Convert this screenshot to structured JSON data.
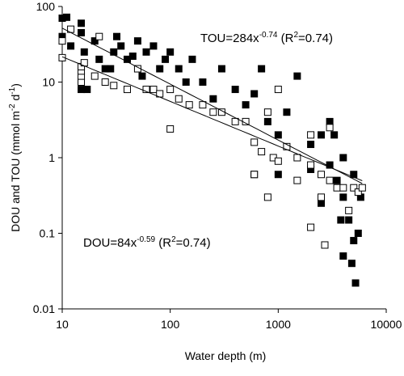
{
  "chart_data": {
    "type": "scatter",
    "xlabel": "Water depth (m)",
    "ylabel_parts": [
      {
        "text": "DOU and TOU (mmol m"
      },
      {
        "text": "-2",
        "sup": true
      },
      {
        "text": " d"
      },
      {
        "text": "-1",
        "sup": true
      },
      {
        "text": ")"
      }
    ],
    "xscale": "log",
    "yscale": "log",
    "xlim": [
      10,
      10000
    ],
    "ylim": [
      0.01,
      100
    ],
    "xticks": [
      10,
      100,
      1000,
      10000
    ],
    "yticks": [
      0.01,
      0.1,
      1,
      10,
      100
    ],
    "annotations": [
      {
        "parts": [
          {
            "text": "TOU=284x"
          },
          {
            "text": "-0.74",
            "sup": true
          },
          {
            "text": " (R"
          },
          {
            "text": "2",
            "sup": true
          },
          {
            "text": "=0.74)"
          }
        ]
      },
      {
        "parts": [
          {
            "text": "DOU=84x"
          },
          {
            "text": "-0.59",
            "sup": true
          },
          {
            "text": " (R"
          },
          {
            "text": "2",
            "sup": true
          },
          {
            "text": "=0.74)"
          }
        ]
      }
    ],
    "fits": [
      {
        "coef": 284,
        "exponent": -0.74,
        "xrange": [
          10,
          6000
        ]
      },
      {
        "coef": 84,
        "exponent": -0.59,
        "xrange": [
          10,
          6000
        ]
      }
    ],
    "series": [
      {
        "color": "#000000",
        "fill": "#000000",
        "x": [
          10,
          11,
          10,
          12,
          15,
          15,
          16,
          17,
          15,
          20,
          22,
          25,
          28,
          30,
          32,
          35,
          40,
          45,
          50,
          55,
          60,
          70,
          80,
          90,
          100,
          120,
          140,
          160,
          200,
          250,
          300,
          400,
          500,
          600,
          700,
          800,
          1000,
          1200,
          1500,
          2000,
          2500,
          3000,
          3500,
          4000,
          4000,
          4500,
          5000,
          5000,
          5200,
          5500,
          5800,
          3000,
          2000,
          1000,
          600,
          4000,
          4800,
          3800,
          2500,
          3300
        ],
        "values": [
          70,
          72,
          40,
          30,
          60,
          45,
          25,
          8,
          8,
          35,
          20,
          15,
          15,
          25,
          40,
          30,
          20,
          22,
          35,
          12,
          25,
          30,
          15,
          20,
          25,
          15,
          10,
          20,
          10,
          6,
          15,
          8,
          5,
          7,
          15,
          3,
          2,
          4,
          12,
          1.5,
          2,
          0.8,
          0.5,
          1,
          0.3,
          0.15,
          0.08,
          0.6,
          0.022,
          0.1,
          0.3,
          3,
          0.7,
          0.6,
          0.6,
          0.05,
          0.04,
          0.15,
          0.25,
          2
        ]
      },
      {
        "color": "#000000",
        "fill": "#ffffff",
        "x": [
          10,
          10,
          12,
          15,
          15,
          15,
          15,
          16,
          20,
          22,
          25,
          30,
          40,
          50,
          60,
          70,
          80,
          100,
          100,
          120,
          150,
          200,
          250,
          300,
          400,
          500,
          600,
          600,
          700,
          800,
          900,
          1000,
          1000,
          1200,
          1500,
          1500,
          2000,
          2000,
          2000,
          2500,
          2500,
          3000,
          3000,
          3500,
          4000,
          4500,
          5000,
          5500,
          6000,
          2700,
          800
        ],
        "values": [
          21,
          35,
          50,
          10,
          12,
          14,
          16,
          18,
          12,
          40,
          10,
          9,
          8,
          15,
          8,
          8,
          7,
          8,
          2.4,
          6,
          5,
          5,
          4,
          4,
          3,
          3,
          1.6,
          0.6,
          1.2,
          0.3,
          1,
          8,
          0.9,
          1.4,
          1,
          0.5,
          0.8,
          2,
          0.12,
          0.6,
          0.3,
          0.5,
          2.5,
          0.4,
          0.4,
          0.2,
          0.4,
          0.35,
          0.4,
          0.07,
          4
        ]
      }
    ]
  }
}
